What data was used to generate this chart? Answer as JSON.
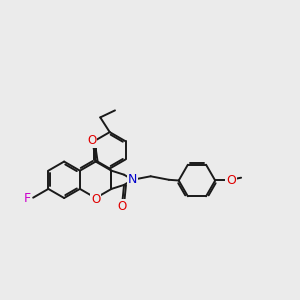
{
  "bg_color": "#ebebeb",
  "bond_color": "#1a1a1a",
  "bond_width": 1.4,
  "atom_colors": {
    "O": "#e00000",
    "N": "#0000cc",
    "F": "#cc00cc",
    "C": "#1a1a1a"
  },
  "font_size": 8.5,
  "R6": 0.52,
  "scale": 1.0
}
